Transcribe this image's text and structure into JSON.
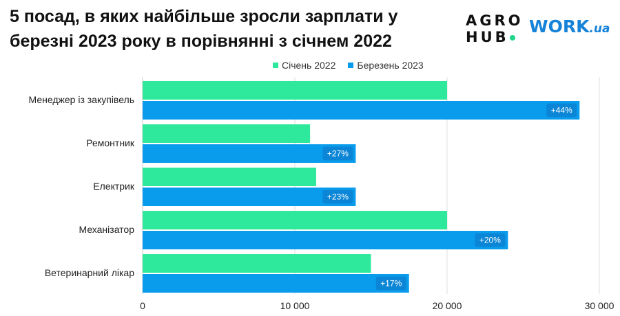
{
  "title": "5 посад, в яких найбільше зросли зарплати у березні 2023 року в порівнянні з січнем 2022",
  "logos": {
    "agro_line1": "AGRO",
    "agro_line2": "HUB",
    "work_main": "WORK",
    "work_suffix": ".ua"
  },
  "colors": {
    "jan2022": "#2ee89b",
    "mar2023": "#0a9cec",
    "label_box": "#0b86d6",
    "grid": "#dedede"
  },
  "chart_data": {
    "type": "bar",
    "orientation": "horizontal",
    "categories": [
      "Менеджер із закупівель",
      "Ремонтник",
      "Електрик",
      "Механізатор",
      "Ветеринарний лікар"
    ],
    "series": [
      {
        "name": "Січень 2022",
        "values": [
          20000,
          11000,
          11400,
          20000,
          15000
        ]
      },
      {
        "name": "Березень 2023",
        "values": [
          28700,
          14000,
          14000,
          24000,
          17500
        ]
      }
    ],
    "data_labels": [
      "+44%",
      "+27%",
      "+23%",
      "+20%",
      "+17%"
    ],
    "xlim": [
      0,
      30000
    ],
    "xticks": [
      0,
      10000,
      20000,
      30000
    ],
    "xtick_labels": [
      "0",
      "10 000",
      "20 000",
      "30 000"
    ],
    "grid": true,
    "legend": "top-center"
  }
}
